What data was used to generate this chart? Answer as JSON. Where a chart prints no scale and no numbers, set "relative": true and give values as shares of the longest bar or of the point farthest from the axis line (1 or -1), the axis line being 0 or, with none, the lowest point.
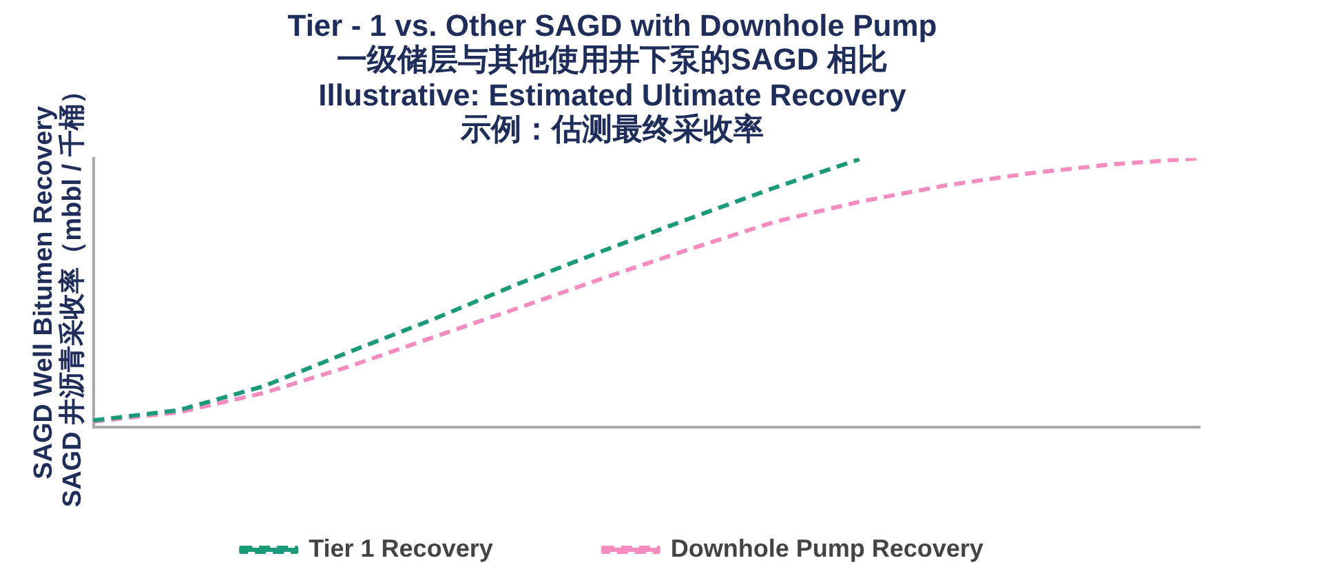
{
  "chart_data": {
    "type": "line",
    "title": "Tier - 1 vs. Other SAGD with Downhole Pump\n一级储层与其他使用井下泵的SAGD 相比",
    "subtitle": "Illustrative: Estimated Ultimate Recovery\n示例：估测最终采收率",
    "ylabel": "SAGD Well Bitumen Recovery\nSAGD 井沥青采收率（mbbl / 千桶）",
    "relative": true,
    "categories": [
      null,
      null,
      null,
      null,
      null,
      null,
      null,
      null,
      null,
      null,
      null,
      null,
      null,
      null
    ],
    "line_style": "dashed",
    "marker": "none",
    "grid": false,
    "legend": "bottom",
    "series": [
      {
        "name": "Tier 1 Recovery",
        "color": "#1a9a78",
        "values": [
          0.025,
          0.063,
          0.152,
          0.279,
          0.402,
          0.534,
          0.657,
          0.775,
          0.89,
          0.996,
          null,
          null,
          null,
          null
        ]
      },
      {
        "name": "Downhole Pump Recovery",
        "color": "#f48cc0",
        "values": [
          0.021,
          0.055,
          0.127,
          0.225,
          0.335,
          0.444,
          0.555,
          0.661,
          0.763,
          0.838,
          0.898,
          0.944,
          0.978,
          1
        ]
      }
    ]
  }
}
